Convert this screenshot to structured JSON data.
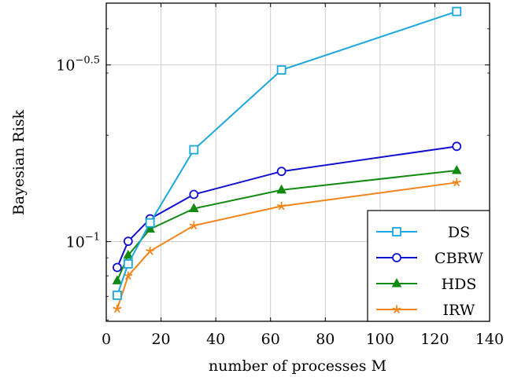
{
  "chart_data": {
    "type": "line",
    "xlabel": "number of processes M",
    "ylabel": "Bayesian Risk",
    "xlim": [
      0,
      140
    ],
    "ylim": [
      0.0595,
      0.473
    ],
    "y_scale": "log",
    "grid": true,
    "legend_position": "bottom-right",
    "x_ticks": [
      0,
      20,
      40,
      60,
      80,
      100,
      120,
      140
    ],
    "x_tick_labels": [
      "0",
      "20",
      "40",
      "60",
      "80",
      "100",
      "120",
      "140"
    ],
    "y_ticks": [
      0.1,
      0.3162
    ],
    "y_tick_labels": [
      {
        "base": "10",
        "exp": "−1"
      },
      {
        "base": "10",
        "exp": "−0.5"
      }
    ],
    "series": [
      {
        "name": "DS",
        "color": "#1aa7dc",
        "marker": "square",
        "x": [
          4,
          8,
          16,
          32,
          64,
          128
        ],
        "y": [
          0.0705,
          0.0865,
          0.113,
          0.182,
          0.306,
          0.448
        ]
      },
      {
        "name": "CBRW",
        "color": "#1010d0",
        "marker": "circle",
        "x": [
          4,
          8,
          16,
          32,
          64,
          128
        ],
        "y": [
          0.0845,
          0.1002,
          0.116,
          0.136,
          0.158,
          0.186
        ]
      },
      {
        "name": "HDS",
        "color": "#118a11",
        "marker": "triangle",
        "x": [
          4,
          8,
          16,
          32,
          64,
          128
        ],
        "y": [
          0.0775,
          0.0915,
          0.1085,
          0.124,
          0.14,
          0.159
        ]
      },
      {
        "name": "IRW",
        "color": "#f2841a",
        "marker": "star",
        "x": [
          4,
          8,
          16,
          32,
          64,
          128
        ],
        "y": [
          0.0645,
          0.08,
          0.094,
          0.111,
          0.126,
          0.147
        ]
      }
    ]
  }
}
